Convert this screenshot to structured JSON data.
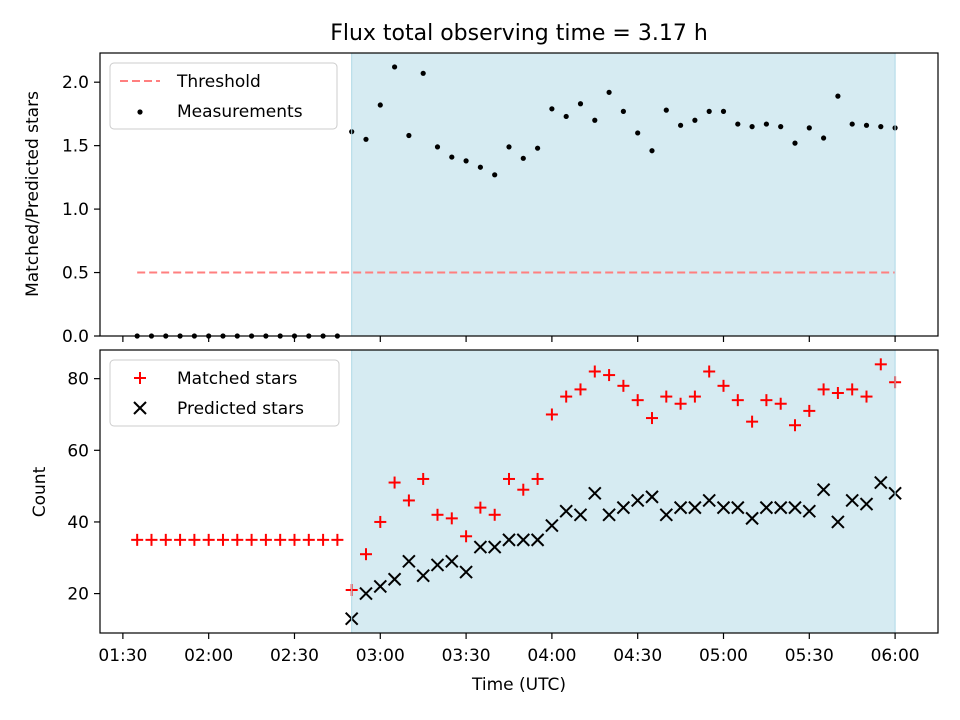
{
  "figure_title": "Flux total observing time = 3.17 h",
  "colors": {
    "shade": "#add8e6",
    "threshold": "#ff7f7f",
    "measurement": "#000000",
    "matched": "#ff0000",
    "predicted": "#000000"
  },
  "chart_data": [
    {
      "type": "scatter",
      "title": "Flux total observing time = 3.17 h",
      "xlabel": "",
      "ylabel": "Matched/Predicted stars",
      "ylim": [
        0,
        2.23
      ],
      "yticks": [
        0.0,
        0.5,
        1.0,
        1.5,
        2.0
      ],
      "ytick_labels": [
        "0.0",
        "0.5",
        "1.0",
        "1.5",
        "2.0"
      ],
      "xlim": [
        "01:22",
        "06:15"
      ],
      "legend_position": "top-left",
      "shaded_region": {
        "from": "02:50",
        "to": "06:00",
        "color": "lightblue"
      },
      "threshold": {
        "name": "Threshold",
        "value": 0.5,
        "from": "01:35",
        "to": "06:00",
        "style": "dashed",
        "color": "#ff7f7f"
      },
      "series": [
        {
          "name": "Measurements",
          "marker": "dot",
          "x": [
            "01:35",
            "01:40",
            "01:45",
            "01:50",
            "01:55",
            "02:00",
            "02:05",
            "02:10",
            "02:15",
            "02:20",
            "02:25",
            "02:30",
            "02:35",
            "02:40",
            "02:45",
            "02:50",
            "02:55",
            "03:00",
            "03:05",
            "03:10",
            "03:15",
            "03:20",
            "03:25",
            "03:30",
            "03:35",
            "03:40",
            "03:45",
            "03:50",
            "03:55",
            "04:00",
            "04:05",
            "04:10",
            "04:15",
            "04:20",
            "04:25",
            "04:30",
            "04:35",
            "04:40",
            "04:45",
            "04:50",
            "04:55",
            "05:00",
            "05:05",
            "05:10",
            "05:15",
            "05:20",
            "05:25",
            "05:30",
            "05:35",
            "05:40",
            "05:45",
            "05:50",
            "05:55",
            "06:00"
          ],
          "y": [
            0,
            0,
            0,
            0,
            0,
            0,
            0,
            0,
            0,
            0,
            0,
            0,
            0,
            0,
            0,
            1.61,
            1.55,
            1.82,
            2.12,
            1.58,
            2.07,
            1.49,
            1.41,
            1.38,
            1.33,
            1.27,
            1.49,
            1.4,
            1.48,
            1.79,
            1.73,
            1.83,
            1.7,
            1.92,
            1.77,
            1.6,
            1.46,
            1.78,
            1.66,
            1.7,
            1.77,
            1.77,
            1.67,
            1.65,
            1.67,
            1.65,
            1.52,
            1.64,
            1.56,
            1.89,
            1.67,
            1.66,
            1.65,
            1.64
          ]
        }
      ]
    },
    {
      "type": "scatter",
      "title": "",
      "xlabel": "Time (UTC)",
      "ylabel": "Count",
      "ylim": [
        9,
        88
      ],
      "yticks": [
        20,
        40,
        60,
        80
      ],
      "ytick_labels": [
        "20",
        "40",
        "60",
        "80"
      ],
      "xlim": [
        "01:22",
        "06:15"
      ],
      "xticks": [
        "01:30",
        "02:00",
        "02:30",
        "03:00",
        "03:30",
        "04:00",
        "04:30",
        "05:00",
        "05:30",
        "06:00"
      ],
      "xtick_labels": [
        "01:30",
        "02:00",
        "02:30",
        "03:00",
        "03:30",
        "04:00",
        "04:30",
        "05:00",
        "05:30",
        "06:00"
      ],
      "legend_position": "top-left",
      "shaded_region": {
        "from": "02:50",
        "to": "06:00",
        "color": "lightblue"
      },
      "series": [
        {
          "name": "Matched stars",
          "marker": "plus",
          "x": [
            "01:35",
            "01:40",
            "01:45",
            "01:50",
            "01:55",
            "02:00",
            "02:05",
            "02:10",
            "02:15",
            "02:20",
            "02:25",
            "02:30",
            "02:35",
            "02:40",
            "02:45",
            "02:50",
            "02:55",
            "03:00",
            "03:05",
            "03:10",
            "03:15",
            "03:20",
            "03:25",
            "03:30",
            "03:35",
            "03:40",
            "03:45",
            "03:50",
            "03:55",
            "04:00",
            "04:05",
            "04:10",
            "04:15",
            "04:20",
            "04:25",
            "04:30",
            "04:35",
            "04:40",
            "04:45",
            "04:50",
            "04:55",
            "05:00",
            "05:05",
            "05:10",
            "05:15",
            "05:20",
            "05:25",
            "05:30",
            "05:35",
            "05:40",
            "05:45",
            "05:50",
            "05:55",
            "06:00"
          ],
          "y": [
            35,
            35,
            35,
            35,
            35,
            35,
            35,
            35,
            35,
            35,
            35,
            35,
            35,
            35,
            35,
            21,
            31,
            40,
            51,
            46,
            52,
            42,
            41,
            36,
            44,
            42,
            52,
            49,
            52,
            70,
            75,
            77,
            82,
            81,
            78,
            74,
            69,
            75,
            73,
            75,
            82,
            78,
            74,
            68,
            74,
            73,
            67,
            71,
            77,
            76,
            77,
            75,
            84,
            79
          ]
        },
        {
          "name": "Predicted stars",
          "marker": "x",
          "x": [
            "02:50",
            "02:55",
            "03:00",
            "03:05",
            "03:10",
            "03:15",
            "03:20",
            "03:25",
            "03:30",
            "03:35",
            "03:40",
            "03:45",
            "03:50",
            "03:55",
            "04:00",
            "04:05",
            "04:10",
            "04:15",
            "04:20",
            "04:25",
            "04:30",
            "04:35",
            "04:40",
            "04:45",
            "04:50",
            "04:55",
            "05:00",
            "05:05",
            "05:10",
            "05:15",
            "05:20",
            "05:25",
            "05:30",
            "05:35",
            "05:40",
            "05:45",
            "05:50",
            "05:55",
            "06:00"
          ],
          "y": [
            13,
            20,
            22,
            24,
            29,
            25,
            28,
            29,
            26,
            33,
            33,
            35,
            35,
            35,
            39,
            43,
            42,
            48,
            42,
            44,
            46,
            47,
            42,
            44,
            44,
            46,
            44,
            44,
            41,
            44,
            44,
            44,
            43,
            49,
            40,
            46,
            45,
            51,
            48
          ]
        }
      ]
    }
  ]
}
